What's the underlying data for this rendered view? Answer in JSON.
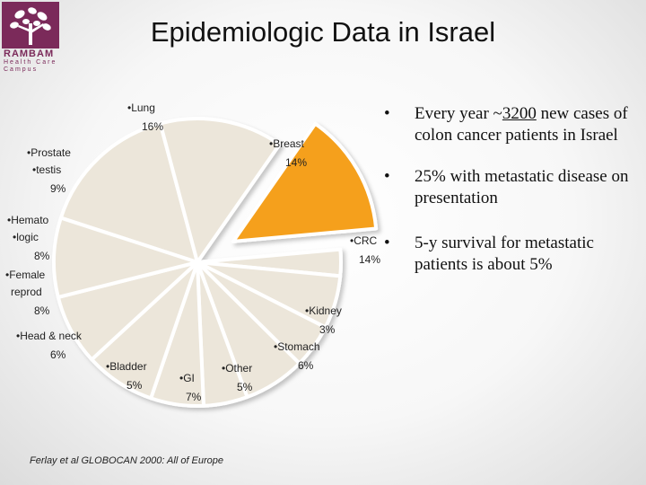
{
  "logo": {
    "name": "RAMBAM",
    "subtitle": "Health Care Campus"
  },
  "title": "Epidemiologic Data in Israel",
  "chart_data": {
    "type": "pie",
    "title": "",
    "slices": [
      {
        "label": "Lung",
        "value": 16
      },
      {
        "label": "Breast",
        "value": 14
      },
      {
        "label": "CRC",
        "value": 14,
        "highlighted": true
      },
      {
        "label": "Kidney",
        "value": 3
      },
      {
        "label": "Stomach",
        "value": 6
      },
      {
        "label": "Other",
        "value": 5
      },
      {
        "label": "GI",
        "value": 7
      },
      {
        "label": "Bladder",
        "value": 5
      },
      {
        "label": "Head & neck",
        "value": 6
      },
      {
        "label": "Female reprod",
        "value": 8
      },
      {
        "label": "Hemato logic",
        "value": 8
      },
      {
        "label": "Prostate testis",
        "value": 9
      }
    ],
    "labels": [
      {
        "lines": [
          "•Lung"
        ],
        "value": "16%"
      },
      {
        "lines": [
          "•Breast"
        ],
        "value": "14%"
      },
      {
        "lines": [
          "•CRC"
        ],
        "value": "14%"
      },
      {
        "lines": [
          "•Kidney"
        ],
        "value": "3%"
      },
      {
        "lines": [
          "•Stomach"
        ],
        "value": "6%"
      },
      {
        "lines": [
          "•Other"
        ],
        "value": "5%"
      },
      {
        "lines": [
          "•GI"
        ],
        "value": "7%"
      },
      {
        "lines": [
          "•Bladder"
        ],
        "value": "5%"
      },
      {
        "lines": [
          "•Head & neck"
        ],
        "value": "6%"
      },
      {
        "lines": [
          "•Female",
          "reprod"
        ],
        "value": "8%"
      },
      {
        "lines": [
          "•Hemato",
          "•logic"
        ],
        "value": "8%"
      },
      {
        "lines": [
          "•Prostate",
          "•testis"
        ],
        "value": "9%"
      }
    ],
    "colors": {
      "slice": "#ece6da",
      "highlight": "#f5a01a",
      "edge": "#ffffff"
    },
    "legend": "none"
  },
  "bullets": [
    {
      "text": "Every year ~",
      "underlined": "3200",
      "rest": " new cases of colon cancer patients in Israel"
    },
    {
      "text": "25% with metastatic disease on presentation"
    },
    {
      "text": "5-y survival for metastatic patients is about 5%"
    }
  ],
  "citation": "Ferlay et al GLOBOCAN 2000: All of Europe"
}
